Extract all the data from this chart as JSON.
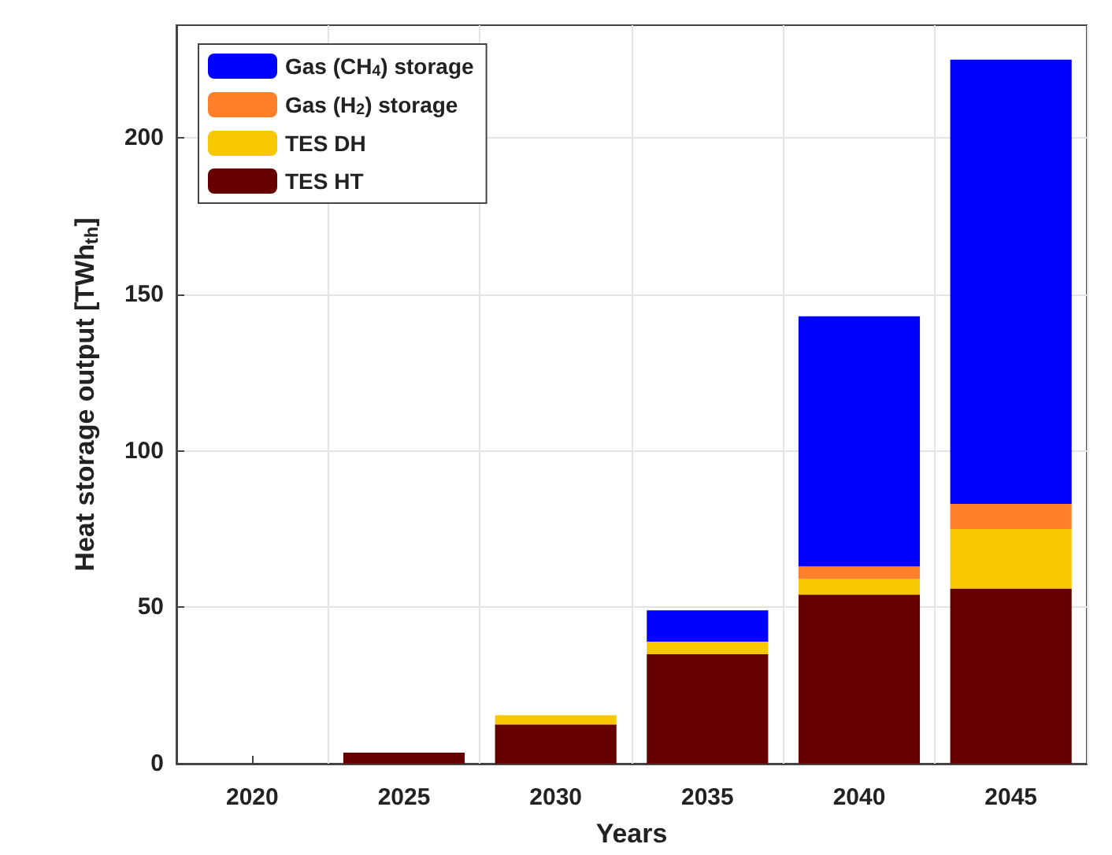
{
  "chart_data": {
    "type": "bar",
    "stacked": true,
    "xlabel": "Years",
    "ylabel": "Heat storage output [TWh$_{th}$]",
    "categories": [
      "2020",
      "2025",
      "2030",
      "2035",
      "2040",
      "2045"
    ],
    "series": [
      {
        "name": "TES HT",
        "color": "#660000",
        "values": [
          0,
          3.5,
          12.5,
          35,
          54,
          56
        ]
      },
      {
        "name": "TES DH",
        "color": "#f7c700",
        "values": [
          0,
          0,
          3,
          4,
          5,
          19
        ]
      },
      {
        "name": "Gas (H$_{2}$) storage",
        "color": "#ff7f2a",
        "values": [
          0,
          0,
          0,
          0,
          4,
          8
        ]
      },
      {
        "name": "Gas (CH$_{4}$) storage",
        "color": "#0000ff",
        "values": [
          0,
          0,
          0,
          10,
          80,
          142
        ]
      }
    ],
    "ylim": [
      0,
      236
    ],
    "yticks": [
      0,
      50,
      100,
      150,
      200
    ],
    "grid": true,
    "legend": "top left"
  }
}
